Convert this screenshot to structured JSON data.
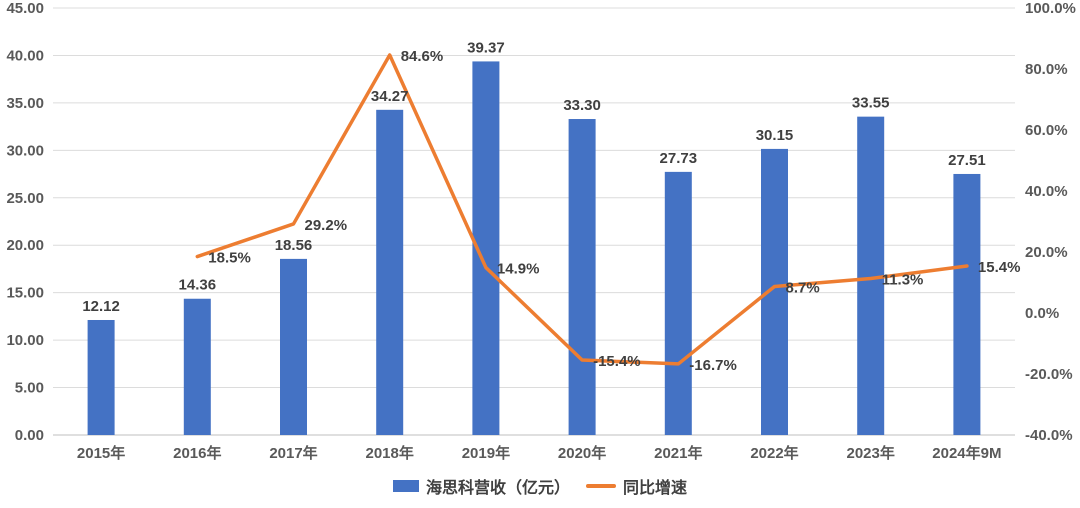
{
  "chart_data": {
    "type": "bar",
    "subtype": "bar-and-line-combo",
    "categories": [
      "2015年",
      "2016年",
      "2017年",
      "2018年",
      "2019年",
      "2020年",
      "2021年",
      "2022年",
      "2023年",
      "2024年9M"
    ],
    "series": [
      {
        "name": "海思科营收（亿元）",
        "type": "bar",
        "axis": "left",
        "values": [
          12.12,
          14.36,
          18.56,
          34.27,
          39.37,
          33.3,
          27.73,
          30.15,
          33.55,
          27.51
        ],
        "labels": [
          "12.12",
          "14.36",
          "18.56",
          "34.27",
          "39.37",
          "33.30",
          "27.73",
          "30.15",
          "33.55",
          "27.51"
        ],
        "color": "#4472C4"
      },
      {
        "name": "同比增速",
        "type": "line",
        "axis": "right",
        "values": [
          null,
          18.5,
          29.2,
          84.6,
          14.9,
          -15.4,
          -16.7,
          8.7,
          11.3,
          15.4
        ],
        "labels": [
          "",
          "18.5%",
          "29.2%",
          "84.6%",
          "14.9%",
          "-15.4%",
          "-16.7%",
          "8.7%",
          "11.3%",
          "15.4%"
        ],
        "color": "#ED7D31"
      }
    ],
    "left_axis": {
      "min": 0,
      "max": 45,
      "step": 5,
      "ticks": [
        "0.00",
        "5.00",
        "10.00",
        "15.00",
        "20.00",
        "25.00",
        "30.00",
        "35.00",
        "40.00",
        "45.00"
      ]
    },
    "right_axis": {
      "min": -40,
      "max": 100,
      "step": 20,
      "ticks": [
        "-40.0%",
        "-20.0%",
        "0.0%",
        "20.0%",
        "40.0%",
        "60.0%",
        "80.0%",
        "100.0%"
      ]
    },
    "grid": true,
    "legend_position": "bottom",
    "title": "",
    "xlabel": "",
    "ylabel": "",
    "colors": {
      "bar": "#4472C4",
      "line": "#ED7D31",
      "gridline": "#DCDCDC",
      "axis_line": "#BFBFBF",
      "axis_text": "#595959",
      "data_label_text": "#404040"
    }
  }
}
